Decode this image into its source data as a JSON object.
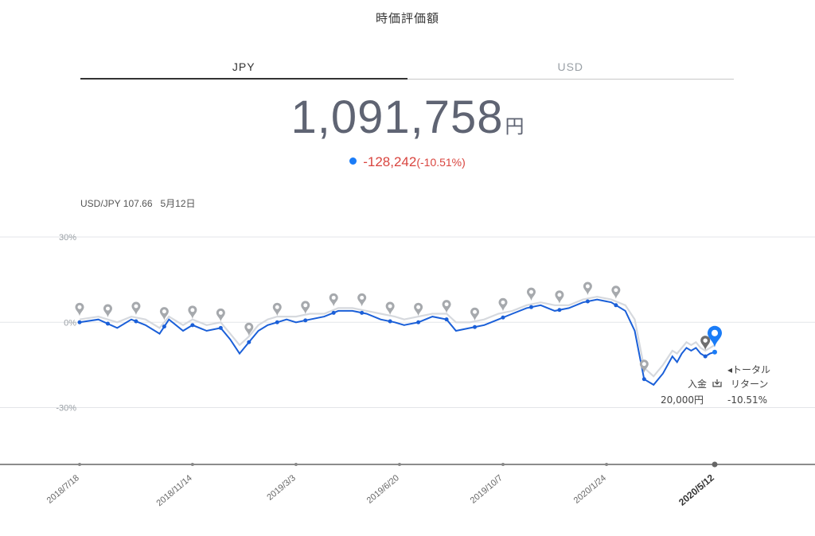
{
  "header": {
    "title": "時価評価額"
  },
  "tabs": [
    {
      "label": "JPY",
      "active": true
    },
    {
      "label": "USD",
      "active": false
    }
  ],
  "valuation": {
    "amount": "1,091,758",
    "unit": "円",
    "change": "-128,242",
    "change_pct": "(-10.51%)"
  },
  "fx": {
    "pair": "USD/JPY 107.66",
    "date": "5月12日"
  },
  "annotations": {
    "total_return_label_1": "◂トータル",
    "total_return_label_2": "リターン",
    "total_return_value": "-10.51%",
    "deposit_label": "入金",
    "deposit_amount": "20,000円"
  },
  "colors": {
    "line_primary": "#1a5fd8",
    "line_secondary": "#d6d9de",
    "negative": "#d9453f",
    "marker": "#a6a9ad",
    "current_marker": "#1a7cf7"
  },
  "chart_data": {
    "type": "line",
    "title": "",
    "xlabel": "",
    "ylabel": "",
    "ylim": [
      -50,
      30
    ],
    "y_ticks": [
      "30%",
      "0%",
      "-30%"
    ],
    "y_tick_values": [
      30,
      0,
      -30
    ],
    "x_ticks": [
      "2018/7/18",
      "2018/11/14",
      "2019/3/3",
      "2019/6/20",
      "2019/10/7",
      "2020/1/24",
      "2020/5/12"
    ],
    "x_tick_index": [
      0,
      120,
      230,
      340,
      450,
      560,
      675
    ],
    "x_range": [
      0,
      675
    ],
    "grid": true,
    "series": [
      {
        "x": [
          0,
          20,
          40,
          55,
          70,
          85,
          95,
          110,
          120,
          135,
          150,
          160,
          170,
          180,
          190,
          200,
          210,
          220,
          230,
          245,
          260,
          275,
          290,
          305,
          320,
          335,
          345,
          360,
          375,
          390,
          400,
          415,
          430,
          445,
          460,
          475,
          490,
          505,
          520,
          535,
          550,
          565,
          580,
          590,
          600,
          610,
          620,
          630,
          635,
          640,
          645,
          650,
          655,
          660,
          665,
          670,
          675
        ],
        "values": [
          0,
          1,
          -2,
          1,
          -1,
          -4,
          1,
          -3,
          -1,
          -3,
          -2,
          -6,
          -11,
          -7,
          -3,
          -1,
          0,
          1,
          0,
          1,
          2,
          4,
          4,
          3,
          1,
          0,
          -1,
          0,
          2,
          1,
          -3,
          -2,
          -1,
          1,
          3,
          5,
          6,
          4,
          5,
          7,
          8,
          7,
          4,
          -3,
          -20,
          -22,
          -18,
          -12,
          -14,
          -11,
          -9,
          -10,
          -9,
          -11,
          -12,
          -11,
          -10.5
        ]
      },
      {
        "x": [
          0,
          20,
          40,
          55,
          70,
          85,
          95,
          110,
          120,
          135,
          150,
          160,
          170,
          180,
          190,
          200,
          210,
          220,
          230,
          245,
          260,
          275,
          290,
          305,
          320,
          335,
          345,
          360,
          375,
          390,
          400,
          415,
          430,
          445,
          460,
          475,
          490,
          505,
          520,
          535,
          550,
          565,
          580,
          590,
          600,
          610,
          620,
          630,
          635,
          640,
          645,
          650,
          655,
          660,
          665,
          670,
          675
        ],
        "values": [
          1,
          2,
          0,
          2,
          1,
          -2,
          2,
          -1,
          1,
          -1,
          0,
          -4,
          -8,
          -5,
          -1,
          1,
          2,
          2,
          2,
          3,
          3,
          5,
          5,
          4,
          3,
          2,
          1,
          2,
          3,
          3,
          0,
          0,
          1,
          3,
          4,
          6,
          7,
          6,
          6,
          8,
          9,
          8,
          6,
          1,
          -16,
          -19,
          -15,
          -10,
          -11,
          -9,
          -7,
          -8,
          -7,
          -9,
          -10,
          -9,
          -8
        ]
      }
    ],
    "event_markers_x": [
      0,
      30,
      60,
      90,
      120,
      150,
      180,
      210,
      240,
      270,
      300,
      330,
      360,
      390,
      420,
      450,
      480,
      510,
      540,
      570,
      600,
      665
    ]
  }
}
